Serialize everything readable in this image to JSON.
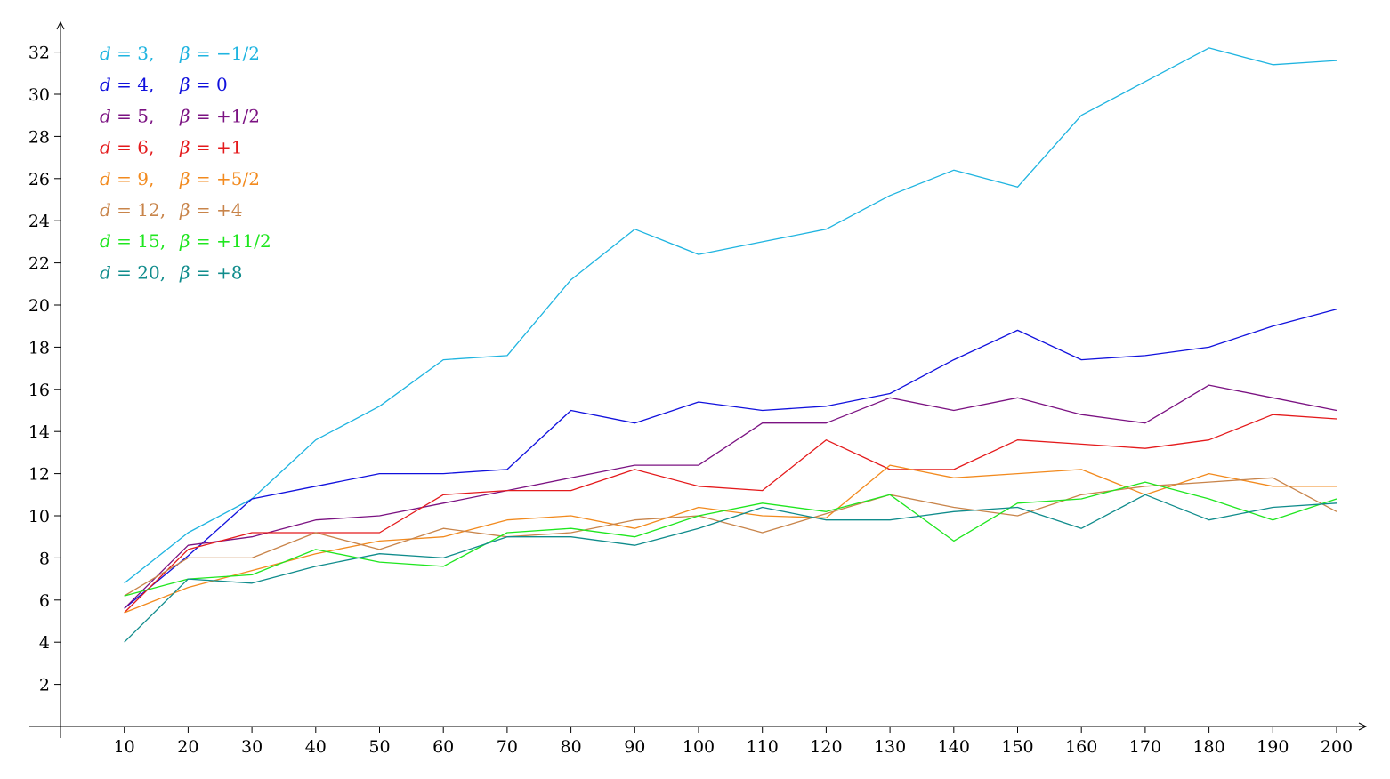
{
  "chart_data": {
    "type": "line",
    "title": "",
    "xlabel": "",
    "ylabel": "",
    "x": [
      10,
      20,
      30,
      40,
      50,
      60,
      70,
      80,
      90,
      100,
      110,
      120,
      130,
      140,
      150,
      160,
      170,
      180,
      190,
      200
    ],
    "xlim": [
      0,
      200
    ],
    "ylim": [
      0,
      32
    ],
    "x_ticks": [
      "10",
      "20",
      "30",
      "40",
      "50",
      "60",
      "70",
      "80",
      "90",
      "100",
      "110",
      "120",
      "130",
      "140",
      "150",
      "160",
      "170",
      "180",
      "190",
      "200"
    ],
    "y_ticks": [
      "2",
      "4",
      "6",
      "8",
      "10",
      "12",
      "14",
      "16",
      "18",
      "20",
      "22",
      "24",
      "26",
      "28",
      "30",
      "32"
    ],
    "grid": false,
    "legend_position": "top-left",
    "series": [
      {
        "d": "3",
        "beta": "−1/2",
        "color": "#1fb4e0",
        "values": [
          6.8,
          9.2,
          10.8,
          13.6,
          15.2,
          17.4,
          17.6,
          21.2,
          23.6,
          22.4,
          23.0,
          23.6,
          25.2,
          26.4,
          25.6,
          29.0,
          30.6,
          32.2,
          31.4,
          31.6
        ]
      },
      {
        "d": "4",
        "beta": "0",
        "color": "#1111dd",
        "values": [
          5.6,
          8.1,
          10.8,
          11.4,
          12.0,
          12.0,
          12.2,
          15.0,
          14.4,
          15.4,
          15.0,
          15.2,
          15.8,
          17.4,
          18.8,
          17.4,
          17.6,
          18.0,
          19.0,
          19.8
        ]
      },
      {
        "d": "5",
        "beta": "+1/2",
        "color": "#7b1282",
        "values": [
          5.6,
          8.6,
          9.0,
          9.8,
          10.0,
          10.6,
          11.2,
          11.8,
          12.4,
          12.4,
          14.4,
          14.4,
          15.6,
          15.0,
          15.6,
          14.8,
          14.4,
          16.2,
          15.6,
          15.0
        ]
      },
      {
        "d": "6",
        "beta": "+1",
        "color": "#e41a1c",
        "values": [
          5.4,
          8.4,
          9.2,
          9.2,
          9.2,
          11.0,
          11.2,
          11.2,
          12.2,
          11.4,
          11.2,
          13.6,
          12.2,
          12.2,
          13.6,
          13.4,
          13.2,
          13.6,
          14.8,
          14.6
        ]
      },
      {
        "d": "9",
        "beta": "+5/2",
        "color": "#f28a1e",
        "values": [
          5.4,
          6.6,
          7.4,
          8.2,
          8.8,
          9.0,
          9.8,
          10.0,
          9.4,
          10.4,
          10.0,
          9.9,
          12.4,
          11.8,
          12.0,
          12.2,
          11.0,
          12.0,
          11.4,
          11.4
        ]
      },
      {
        "d": "12",
        "beta": "+4",
        "color": "#c8844a",
        "values": [
          6.2,
          8.0,
          8.0,
          9.2,
          8.4,
          9.4,
          9.0,
          9.2,
          9.8,
          10.0,
          9.2,
          10.1,
          11.0,
          10.4,
          10.0,
          11.0,
          11.4,
          11.6,
          11.8,
          10.2
        ]
      },
      {
        "d": "15",
        "beta": "+11/2",
        "color": "#1fe61f",
        "values": [
          6.2,
          7.0,
          7.2,
          8.4,
          7.8,
          7.6,
          9.2,
          9.4,
          9.0,
          10.0,
          10.6,
          10.2,
          11.0,
          8.8,
          10.6,
          10.8,
          11.6,
          10.8,
          9.8,
          10.8
        ]
      },
      {
        "d": "20",
        "beta": "+8",
        "color": "#108c8c",
        "values": [
          4.0,
          7.0,
          6.8,
          7.6,
          8.2,
          8.0,
          9.0,
          9.0,
          8.6,
          9.4,
          10.4,
          9.8,
          9.8,
          10.2,
          10.4,
          9.4,
          11.0,
          9.8,
          10.4,
          10.6
        ]
      }
    ]
  }
}
